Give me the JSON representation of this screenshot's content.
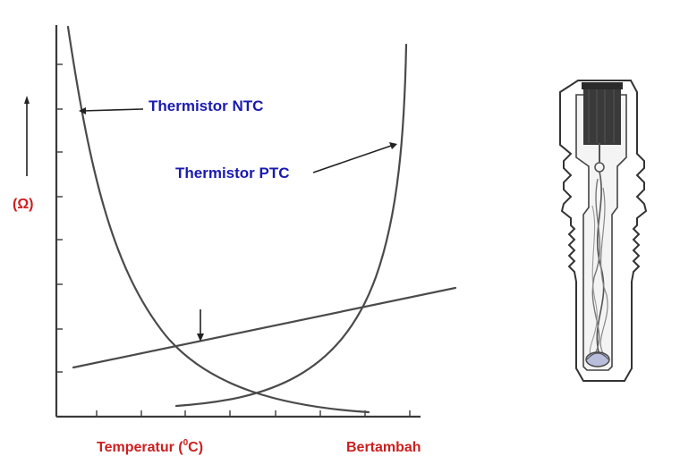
{
  "labels": {
    "ntc": "Thermistor NTC",
    "ptc": "Thermistor PTC",
    "y_unit": "(Ω)",
    "x_label_prefix": "Temperatur (",
    "x_label_sup": "0",
    "x_label_suffix": "C)",
    "x_direction": "Bertambah"
  },
  "colors": {
    "label_blue": "#1a1ab0",
    "label_red": "#cc1f1f",
    "curve": "#4a4a4a",
    "sensor_fill": "#3a3a3a"
  },
  "icons": {
    "y_arrow": "up-arrow-icon",
    "sensor": "thermistor-sensor-illustration"
  }
}
